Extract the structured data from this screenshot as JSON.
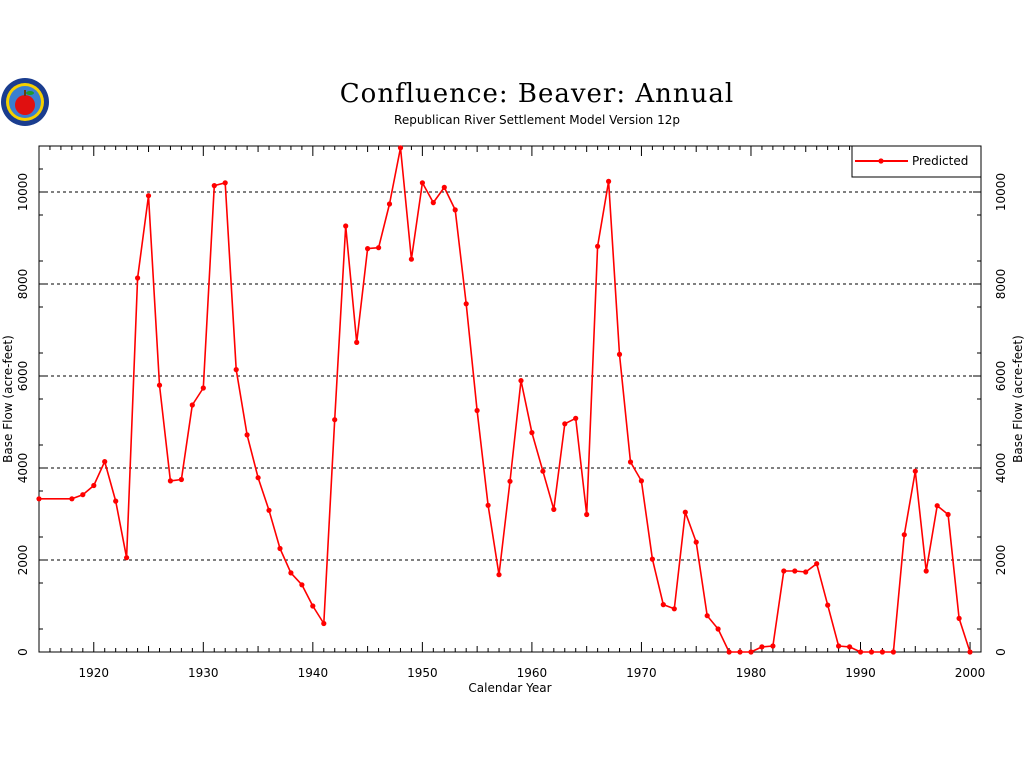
{
  "logo": {
    "icon": "apple-seal-logo"
  },
  "chart_data": {
    "type": "line",
    "title": "Confluence: Beaver: Annual",
    "subtitle": "Republican River Settlement Model Version 12p",
    "xlabel": "Calendar Year",
    "ylabel": "Base Flow (acre-feet)",
    "xlim": [
      1915,
      2001
    ],
    "ylim": [
      0,
      11000
    ],
    "x_ticks": [
      1920,
      1930,
      1940,
      1950,
      1960,
      1970,
      1980,
      1990,
      2000
    ],
    "y_ticks": [
      0,
      2000,
      4000,
      6000,
      8000,
      10000
    ],
    "grid": "horizontal dashed",
    "legend_position": "top-right",
    "colors": {
      "series": "#ff0000",
      "grid": "#000000"
    },
    "series": [
      {
        "name": "Predicted",
        "x": [
          1915,
          1918,
          1919,
          1920,
          1921,
          1922,
          1923,
          1924,
          1925,
          1926,
          1927,
          1928,
          1929,
          1930,
          1931,
          1932,
          1933,
          1934,
          1935,
          1936,
          1937,
          1938,
          1939,
          1940,
          1941,
          1942,
          1943,
          1944,
          1945,
          1946,
          1947,
          1948,
          1949,
          1950,
          1951,
          1952,
          1953,
          1954,
          1955,
          1956,
          1957,
          1958,
          1959,
          1960,
          1961,
          1962,
          1963,
          1964,
          1965,
          1966,
          1967,
          1968,
          1969,
          1970,
          1971,
          1972,
          1973,
          1974,
          1975,
          1976,
          1977,
          1978,
          1979,
          1980,
          1981,
          1982,
          1983,
          1984,
          1985,
          1986,
          1987,
          1988,
          1989,
          1990,
          1991,
          1992,
          1993,
          1994,
          1995,
          1996,
          1997,
          1998,
          1999,
          2000
        ],
        "y": [
          3330,
          3330,
          3420,
          3620,
          4140,
          3280,
          2050,
          8130,
          9920,
          5800,
          3720,
          3750,
          5370,
          5740,
          10140,
          10200,
          6140,
          4720,
          3790,
          3080,
          2250,
          1720,
          1460,
          1000,
          620,
          5050,
          9260,
          6730,
          8770,
          8790,
          9740,
          10960,
          8540,
          10200,
          9770,
          10100,
          9610,
          7570,
          5250,
          3190,
          1680,
          3710,
          5900,
          4770,
          3930,
          3100,
          4960,
          5080,
          2990,
          8820,
          10230,
          6470,
          4130,
          3720,
          2020,
          1030,
          940,
          3040,
          2390,
          790,
          500,
          0,
          0,
          0,
          110,
          130,
          1760,
          1760,
          1740,
          1920,
          1020,
          130,
          110,
          0,
          0,
          0,
          0,
          2550,
          3930,
          1760,
          3180,
          2990,
          730,
          0
        ]
      }
    ]
  }
}
